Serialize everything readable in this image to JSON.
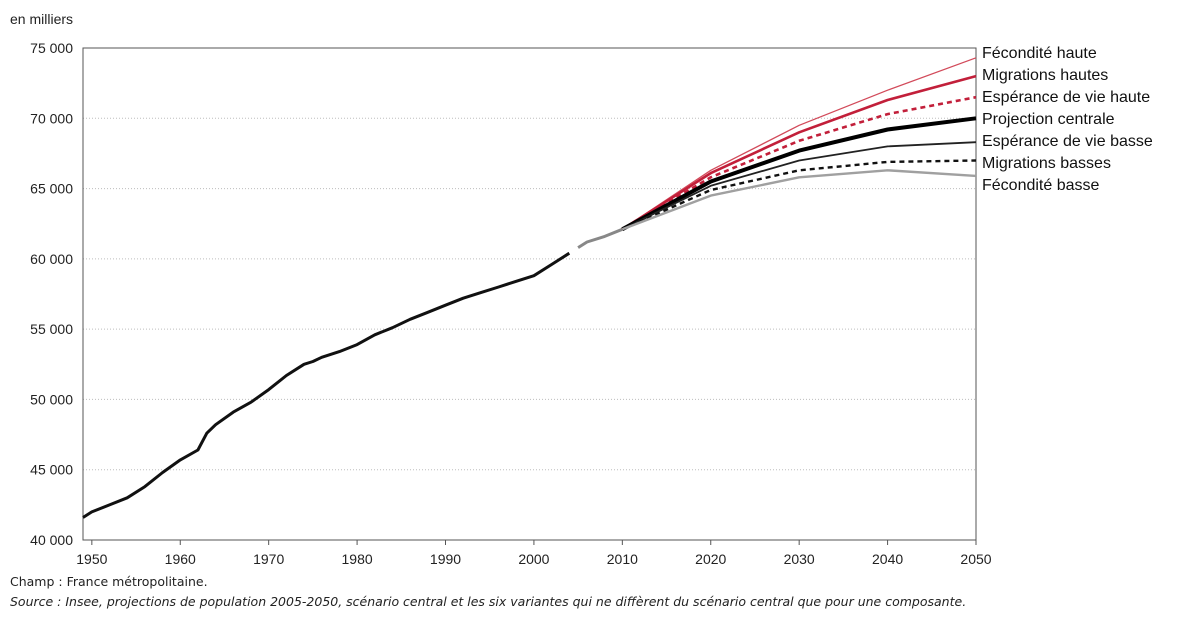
{
  "chart_data": {
    "type": "line",
    "unit_label": "en milliers",
    "ylim": [
      40000,
      75000
    ],
    "xlim": [
      1949,
      2050
    ],
    "y_ticks": [
      40000,
      45000,
      50000,
      55000,
      60000,
      65000,
      70000,
      75000
    ],
    "y_tick_labels": [
      "40 000",
      "45 000",
      "50 000",
      "55 000",
      "60 000",
      "65 000",
      "70 000",
      "75 000"
    ],
    "x_ticks": [
      1950,
      1960,
      1970,
      1980,
      1990,
      2000,
      2010,
      2020,
      2030,
      2040,
      2050
    ],
    "x_tick_labels": [
      "1950",
      "1960",
      "1970",
      "1980",
      "1990",
      "2000",
      "2010",
      "2020",
      "2030",
      "2040",
      "2050"
    ],
    "grid": true,
    "legend_placement": "right, inline labels at line ends",
    "historical": {
      "color": "#111111",
      "x": [
        1949,
        1950,
        1952,
        1954,
        1956,
        1958,
        1960,
        1962,
        1963,
        1964,
        1966,
        1968,
        1970,
        1972,
        1974,
        1975,
        1976,
        1978,
        1980,
        1982,
        1984,
        1986,
        1988,
        1990,
        1992,
        1994,
        1996,
        1998,
        2000,
        2002,
        2004
      ],
      "values": [
        41600,
        42000,
        42500,
        43000,
        43800,
        44800,
        45700,
        46400,
        47600,
        48200,
        49100,
        49800,
        50700,
        51700,
        52500,
        52700,
        53000,
        53400,
        53900,
        54600,
        55100,
        55700,
        56200,
        56700,
        57200,
        57600,
        58000,
        58400,
        58800,
        59600,
        60400
      ]
    },
    "projection_start": {
      "color": "#888888",
      "x": [
        2005,
        2006,
        2008,
        2010
      ],
      "values": [
        60800,
        61200,
        61600,
        62100
      ]
    },
    "series": [
      {
        "name": "Fécondité haute",
        "color": "#d24a5a",
        "width": 1.3,
        "dash": "",
        "x": [
          2010,
          2020,
          2030,
          2040,
          2050
        ],
        "values": [
          62100,
          66300,
          69500,
          72000,
          74300
        ]
      },
      {
        "name": "Migrations hautes",
        "color": "#c21f3a",
        "width": 2.6,
        "dash": "",
        "x": [
          2010,
          2020,
          2030,
          2040,
          2050
        ],
        "values": [
          62100,
          66100,
          69000,
          71300,
          73000
        ]
      },
      {
        "name": "Espérance de vie haute",
        "color": "#c21f3a",
        "width": 2.6,
        "dash": "5,4",
        "x": [
          2010,
          2020,
          2030,
          2040,
          2050
        ],
        "values": [
          62100,
          65800,
          68400,
          70300,
          71500
        ]
      },
      {
        "name": "Projection centrale",
        "color": "#000000",
        "width": 4,
        "dash": "",
        "x": [
          2010,
          2020,
          2030,
          2040,
          2050
        ],
        "values": [
          62100,
          65500,
          67700,
          69200,
          70000
        ]
      },
      {
        "name": "Espérance de vie basse",
        "color": "#222222",
        "width": 1.8,
        "dash": "",
        "x": [
          2010,
          2020,
          2030,
          2040,
          2050
        ],
        "values": [
          62100,
          65200,
          67000,
          68000,
          68300
        ]
      },
      {
        "name": "Migrations basses",
        "color": "#111111",
        "width": 2.4,
        "dash": "5,4",
        "x": [
          2010,
          2020,
          2030,
          2040,
          2050
        ],
        "values": [
          62100,
          64900,
          66300,
          66900,
          67000
        ]
      },
      {
        "name": "Fécondité basse",
        "color": "#a0a0a0",
        "width": 2.4,
        "dash": "",
        "x": [
          2010,
          2020,
          2030,
          2040,
          2050
        ],
        "values": [
          62100,
          64500,
          65800,
          66300,
          65900
        ]
      }
    ]
  },
  "notes": {
    "champ": "Champ : France métropolitaine.",
    "source": "Source : Insee, projections de population 2005-2050, scénario central et les six variantes qui ne diffèrent du scénario central que pour une composante."
  }
}
